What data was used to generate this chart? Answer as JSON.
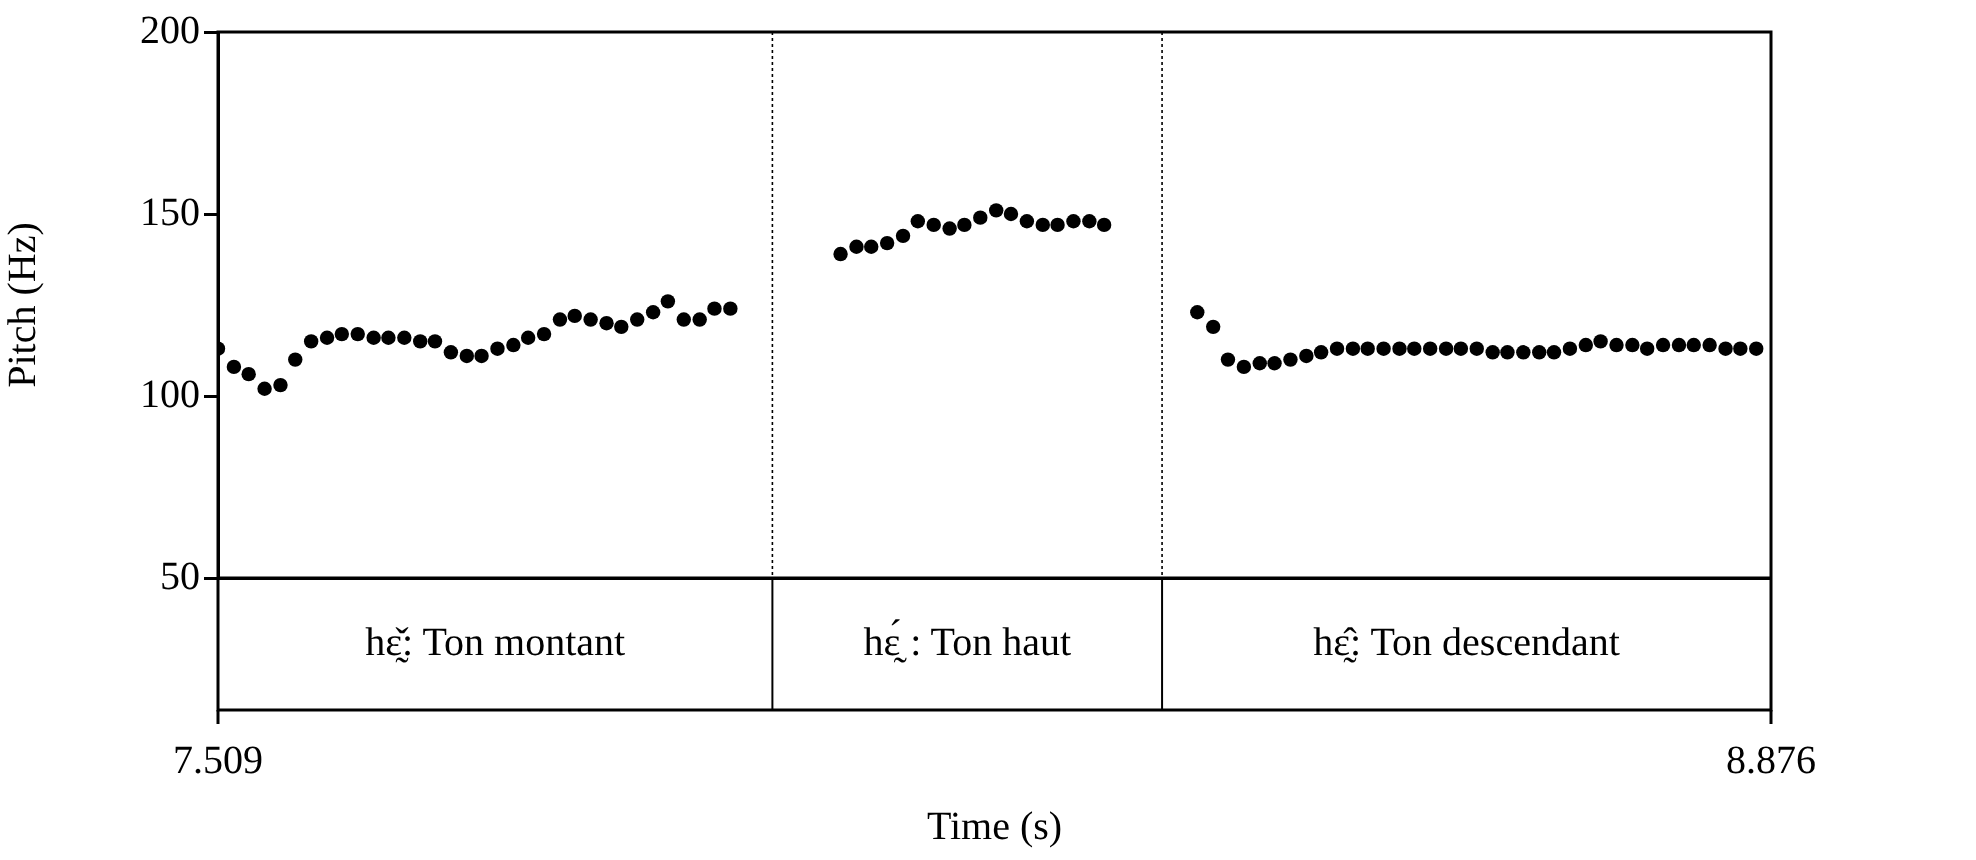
{
  "chart_data": {
    "type": "scatter",
    "xlabel": "Time (s)",
    "ylabel": "Pitch (Hz)",
    "xlim": [
      7.509,
      8.876
    ],
    "xticks": [
      7.509,
      8.876
    ],
    "ylim": [
      50,
      200
    ],
    "yticks": [
      50,
      100,
      150,
      200
    ],
    "grid": false,
    "marker": "circle",
    "series": [
      {
        "color": "#000000",
        "x": [
          7.509,
          7.523,
          7.536,
          7.55,
          7.564,
          7.577,
          7.591,
          7.605,
          7.618,
          7.632,
          7.646,
          7.659,
          7.673,
          7.687,
          7.7,
          7.714,
          7.728,
          7.741,
          7.755,
          7.769,
          7.782,
          7.796,
          7.81,
          7.823,
          7.837,
          7.851,
          7.864,
          7.878,
          7.892,
          7.905,
          7.919,
          7.933,
          7.946,
          7.96,
          8.057,
          8.071,
          8.084,
          8.098,
          8.112,
          8.125,
          8.139,
          8.153,
          8.166,
          8.18,
          8.194,
          8.207,
          8.221,
          8.235,
          8.248,
          8.262,
          8.276,
          8.289,
          8.371,
          8.385,
          8.398,
          8.412,
          8.426,
          8.439,
          8.453,
          8.467,
          8.48,
          8.494,
          8.508,
          8.521,
          8.535,
          8.549,
          8.562,
          8.576,
          8.59,
          8.603,
          8.617,
          8.631,
          8.644,
          8.658,
          8.672,
          8.685,
          8.699,
          8.713,
          8.726,
          8.74,
          8.754,
          8.767,
          8.781,
          8.795,
          8.808,
          8.822,
          8.836,
          8.849,
          8.863
        ],
        "values": [
          113,
          108,
          106,
          102,
          103,
          110,
          115,
          116,
          117,
          117,
          116,
          116,
          116,
          115,
          115,
          112,
          111,
          111,
          113,
          114,
          116,
          117,
          121,
          122,
          121,
          120,
          119,
          121,
          123,
          126,
          121,
          121,
          124,
          124,
          139,
          141,
          141,
          142,
          144,
          148,
          147,
          146,
          147,
          149,
          151,
          150,
          148,
          147,
          147,
          148,
          148,
          147,
          123,
          119,
          110,
          108,
          109,
          109,
          110,
          111,
          112,
          113,
          113,
          113,
          113,
          113,
          113,
          113,
          113,
          113,
          113,
          112,
          112,
          112,
          112,
          112,
          113,
          114,
          115,
          114,
          114,
          113,
          114,
          114,
          114,
          114,
          113,
          113,
          113
        ]
      }
    ],
    "ref_lines": [
      {
        "axis": "x",
        "value": 7.997,
        "line_style": "dotted"
      },
      {
        "axis": "x",
        "value": 8.34,
        "line_style": "dotted"
      }
    ],
    "annotations": [
      "hɛ̰̌: Ton montant",
      "hɛ̰́ : Ton haut",
      "hɛ̰̂: Ton descendant"
    ]
  }
}
